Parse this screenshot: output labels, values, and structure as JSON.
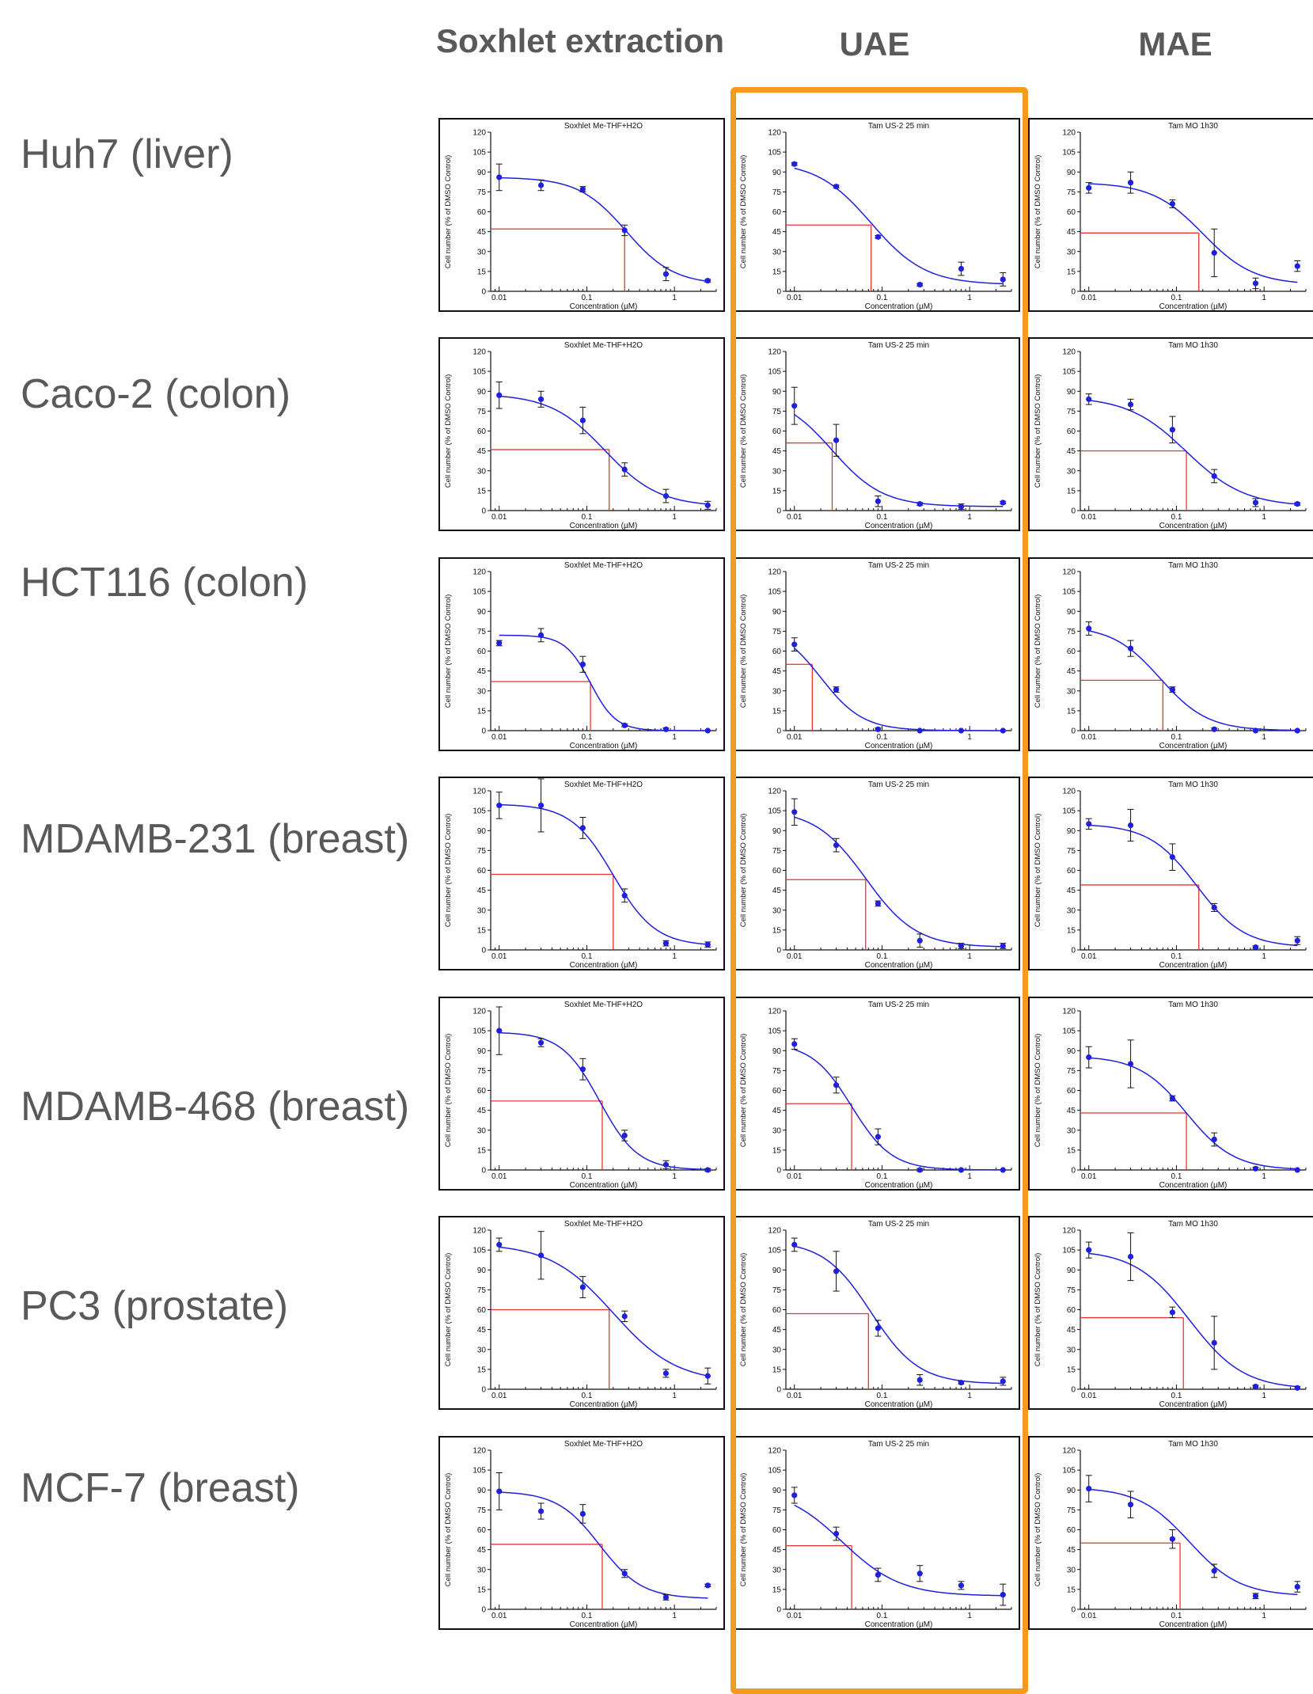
{
  "columns": [
    "Soxhlet extraction",
    "UAE",
    "MAE"
  ],
  "rows": [
    "Huh7 (liver)",
    "Caco-2 (colon)",
    "HCT116 (colon)",
    "MDAMB-231 (breast)",
    "MDAMB-468 (breast)",
    "PC3 (prostate)",
    "MCF-7 (breast)"
  ],
  "colors": {
    "highlight_frame": "#f39a20",
    "fit_curve": "#1f1fe0",
    "ic50_marker": "#e8332e",
    "header_text": "#595959"
  },
  "chart_data": [
    {
      "type": "scatter",
      "title": "Soxhlet Me-THF+H2O",
      "xlabel": "Concentration (µM)",
      "ylabel": "Cell number (% of DMSO Control)",
      "x_scale": "log",
      "xlim": [
        0.008,
        3
      ],
      "ylim": [
        0,
        120
      ],
      "xticks": [
        "0.01",
        "0.1",
        "1"
      ],
      "yticks": [
        0,
        15,
        30,
        45,
        60,
        75,
        90,
        105,
        120
      ],
      "x": [
        0.01,
        0.03,
        0.09,
        0.27,
        0.8,
        2.4
      ],
      "y": [
        86,
        80,
        77,
        46,
        13,
        8
      ],
      "err": [
        10,
        4,
        2,
        4,
        5,
        1
      ],
      "ic50_x": 0.27,
      "ic50_y": 47,
      "fit": {
        "top": 86,
        "bottom": 5,
        "ec50": 0.28,
        "hill": 1.6
      }
    },
    {
      "type": "scatter",
      "title": "Tam US-2 25 min",
      "xlabel": "Concentration (µM)",
      "ylabel": "Cell number (% of DMSO Control)",
      "x_scale": "log",
      "xlim": [
        0.008,
        3
      ],
      "ylim": [
        0,
        120
      ],
      "xticks": [
        "0.01",
        "0.1",
        "1"
      ],
      "yticks": [
        0,
        15,
        30,
        45,
        60,
        75,
        90,
        105,
        120
      ],
      "x": [
        0.01,
        0.03,
        0.09,
        0.27,
        0.8,
        2.4
      ],
      "y": [
        96,
        79,
        41,
        5,
        17,
        9
      ],
      "err": [
        1,
        1,
        1,
        1,
        5,
        5
      ],
      "ic50_x": 0.075,
      "ic50_y": 50,
      "fit": {
        "top": 98,
        "bottom": 5,
        "ec50": 0.075,
        "hill": 1.4
      }
    },
    {
      "type": "scatter",
      "title": "Tam MO 1h30",
      "xlabel": "Concentration (µM)",
      "ylabel": "Cell number (% of DMSO Control)",
      "x_scale": "log",
      "xlim": [
        0.008,
        3
      ],
      "ylim": [
        0,
        120
      ],
      "xticks": [
        "0.01",
        "0.1",
        "1"
      ],
      "yticks": [
        0,
        15,
        30,
        45,
        60,
        75,
        90,
        105,
        120
      ],
      "x": [
        0.01,
        0.03,
        0.09,
        0.27,
        0.8,
        2.4
      ],
      "y": [
        78,
        82,
        66,
        29,
        6,
        19
      ],
      "err": [
        4,
        8,
        3,
        18,
        4,
        4
      ],
      "ic50_x": 0.18,
      "ic50_y": 44,
      "fit": {
        "top": 82,
        "bottom": 5,
        "ec50": 0.2,
        "hill": 1.5
      }
    },
    {
      "type": "scatter",
      "title": "Soxhlet Me-THF+H2O",
      "xlabel": "Concentration (µM)",
      "ylabel": "Cell number (% of DMSO Control)",
      "x_scale": "log",
      "xlim": [
        0.008,
        3
      ],
      "ylim": [
        0,
        120
      ],
      "xticks": [
        "0.01",
        "0.1",
        "1"
      ],
      "yticks": [
        0,
        15,
        30,
        45,
        60,
        75,
        90,
        105,
        120
      ],
      "x": [
        0.01,
        0.03,
        0.09,
        0.27,
        0.8,
        2.4
      ],
      "y": [
        87,
        84,
        68,
        31,
        11,
        4
      ],
      "err": [
        10,
        6,
        10,
        5,
        5,
        3
      ],
      "ic50_x": 0.18,
      "ic50_y": 46,
      "fit": {
        "top": 88,
        "bottom": 3,
        "ec50": 0.16,
        "hill": 1.4
      }
    },
    {
      "type": "scatter",
      "title": "Tam US-2 25 min",
      "xlabel": "Concentration (µM)",
      "ylabel": "Cell number (% of DMSO Control)",
      "x_scale": "log",
      "xlim": [
        0.008,
        3
      ],
      "ylim": [
        0,
        120
      ],
      "xticks": [
        "0.01",
        "0.1",
        "1"
      ],
      "yticks": [
        0,
        15,
        30,
        45,
        60,
        75,
        90,
        105,
        120
      ],
      "x": [
        0.01,
        0.03,
        0.09,
        0.27,
        0.8,
        2.4
      ],
      "y": [
        79,
        53,
        7,
        5,
        3,
        6
      ],
      "err": [
        14,
        12,
        4,
        1,
        2,
        1
      ],
      "ic50_x": 0.027,
      "ic50_y": 51,
      "fit": {
        "top": 88,
        "bottom": 3,
        "ec50": 0.027,
        "hill": 1.5
      }
    },
    {
      "type": "scatter",
      "title": "Tam MO 1h30",
      "xlabel": "Concentration (µM)",
      "ylabel": "Cell number (% of DMSO Control)",
      "x_scale": "log",
      "xlim": [
        0.008,
        3
      ],
      "ylim": [
        0,
        120
      ],
      "xticks": [
        "0.01",
        "0.1",
        "1"
      ],
      "yticks": [
        0,
        15,
        30,
        45,
        60,
        75,
        90,
        105,
        120
      ],
      "x": [
        0.01,
        0.03,
        0.09,
        0.27,
        0.8,
        2.4
      ],
      "y": [
        84,
        80,
        61,
        26,
        6,
        5
      ],
      "err": [
        4,
        4,
        10,
        5,
        3,
        1
      ],
      "ic50_x": 0.13,
      "ic50_y": 45,
      "fit": {
        "top": 86,
        "bottom": 3,
        "ec50": 0.13,
        "hill": 1.3
      }
    },
    {
      "type": "scatter",
      "title": "Soxhlet Me-THF+H2O",
      "xlabel": "Concentration (µM)",
      "ylabel": "Cell number (% of DMSO Control)",
      "x_scale": "log",
      "xlim": [
        0.008,
        3
      ],
      "ylim": [
        0,
        120
      ],
      "xticks": [
        "0.01",
        "0.1",
        "1"
      ],
      "yticks": [
        0,
        15,
        30,
        45,
        60,
        75,
        90,
        105,
        120
      ],
      "x": [
        0.01,
        0.03,
        0.09,
        0.27,
        0.8,
        2.4
      ],
      "y": [
        66,
        72,
        50,
        4,
        1,
        0
      ],
      "err": [
        2,
        5,
        6,
        1,
        1,
        0
      ],
      "ic50_x": 0.11,
      "ic50_y": 37,
      "fit": {
        "top": 72,
        "bottom": 0,
        "ec50": 0.11,
        "hill": 3
      }
    },
    {
      "type": "scatter",
      "title": "Tam US-2 25 min",
      "xlabel": "Concentration (µM)",
      "ylabel": "Cell number (% of DMSO Control)",
      "x_scale": "log",
      "xlim": [
        0.008,
        3
      ],
      "ylim": [
        0,
        120
      ],
      "xticks": [
        "0.01",
        "0.1",
        "1"
      ],
      "yticks": [
        0,
        15,
        30,
        45,
        60,
        75,
        90,
        105,
        120
      ],
      "x": [
        0.01,
        0.03,
        0.09,
        0.27,
        0.8,
        2.4
      ],
      "y": [
        65,
        31,
        1,
        0,
        0,
        0
      ],
      "err": [
        5,
        2,
        1,
        0,
        0,
        0
      ],
      "ic50_x": 0.016,
      "ic50_y": 50,
      "fit": {
        "top": 80,
        "bottom": 0,
        "ec50": 0.02,
        "hill": 1.8
      }
    },
    {
      "type": "scatter",
      "title": "Tam MO 1h30",
      "xlabel": "Concentration (µM)",
      "ylabel": "Cell number (% of DMSO Control)",
      "x_scale": "log",
      "xlim": [
        0.008,
        3
      ],
      "ylim": [
        0,
        120
      ],
      "xticks": [
        "0.01",
        "0.1",
        "1"
      ],
      "yticks": [
        0,
        15,
        30,
        45,
        60,
        75,
        90,
        105,
        120
      ],
      "x": [
        0.01,
        0.03,
        0.09,
        0.27,
        0.8,
        2.4
      ],
      "y": [
        77,
        62,
        31,
        1,
        0,
        0
      ],
      "err": [
        5,
        6,
        2,
        1,
        0,
        0
      ],
      "ic50_x": 0.07,
      "ic50_y": 38,
      "fit": {
        "top": 79,
        "bottom": 0,
        "ec50": 0.065,
        "hill": 1.6
      }
    },
    {
      "type": "scatter",
      "title": "Soxhlet Me-THF+H2O",
      "xlabel": "Concentration (µM)",
      "ylabel": "Cell number (% of DMSO Control)",
      "x_scale": "log",
      "xlim": [
        0.008,
        3
      ],
      "ylim": [
        0,
        120
      ],
      "xticks": [
        "0.01",
        "0.1",
        "1"
      ],
      "yticks": [
        0,
        15,
        30,
        45,
        60,
        75,
        90,
        105,
        120
      ],
      "x": [
        0.01,
        0.03,
        0.09,
        0.27,
        0.8,
        2.4
      ],
      "y": [
        109,
        109,
        92,
        41,
        5,
        4
      ],
      "err": [
        10,
        20,
        8,
        5,
        2,
        2
      ],
      "ic50_x": 0.2,
      "ic50_y": 57,
      "fit": {
        "top": 110,
        "bottom": 3,
        "ec50": 0.2,
        "hill": 1.8
      }
    },
    {
      "type": "scatter",
      "title": "Tam US-2 25 min",
      "xlabel": "Concentration (µM)",
      "ylabel": "Cell number (% of DMSO Control)",
      "x_scale": "log",
      "xlim": [
        0.008,
        3
      ],
      "ylim": [
        0,
        120
      ],
      "xticks": [
        "0.01",
        "0.1",
        "1"
      ],
      "yticks": [
        0,
        15,
        30,
        45,
        60,
        75,
        90,
        105,
        120
      ],
      "x": [
        0.01,
        0.03,
        0.09,
        0.27,
        0.8,
        2.4
      ],
      "y": [
        104,
        79,
        35,
        7,
        3,
        3
      ],
      "err": [
        10,
        5,
        2,
        5,
        2,
        2
      ],
      "ic50_x": 0.065,
      "ic50_y": 53,
      "fit": {
        "top": 106,
        "bottom": 2,
        "ec50": 0.065,
        "hill": 1.5
      }
    },
    {
      "type": "scatter",
      "title": "Tam MO 1h30",
      "xlabel": "Concentration (µM)",
      "ylabel": "Cell number (% of DMSO Control)",
      "x_scale": "log",
      "xlim": [
        0.008,
        3
      ],
      "ylim": [
        0,
        120
      ],
      "xticks": [
        "0.01",
        "0.1",
        "1"
      ],
      "yticks": [
        0,
        15,
        30,
        45,
        60,
        75,
        90,
        105,
        120
      ],
      "x": [
        0.01,
        0.03,
        0.09,
        0.27,
        0.8,
        2.4
      ],
      "y": [
        95,
        94,
        70,
        32,
        2,
        7
      ],
      "err": [
        4,
        12,
        10,
        3,
        1,
        3
      ],
      "ic50_x": 0.18,
      "ic50_y": 49,
      "fit": {
        "top": 95,
        "bottom": 2,
        "ec50": 0.17,
        "hill": 1.6
      }
    },
    {
      "type": "scatter",
      "title": "Soxhlet Me-THF+H2O",
      "xlabel": "Concentration (µM)",
      "ylabel": "Cell number (% of DMSO Control)",
      "x_scale": "log",
      "xlim": [
        0.008,
        3
      ],
      "ylim": [
        0,
        120
      ],
      "xticks": [
        "0.01",
        "0.1",
        "1"
      ],
      "yticks": [
        0,
        15,
        30,
        45,
        60,
        75,
        90,
        105,
        120
      ],
      "x": [
        0.01,
        0.03,
        0.09,
        0.27,
        0.8,
        2.4
      ],
      "y": [
        105,
        96,
        76,
        26,
        4,
        0
      ],
      "err": [
        18,
        3,
        8,
        4,
        3,
        1
      ],
      "ic50_x": 0.15,
      "ic50_y": 52,
      "fit": {
        "top": 104,
        "bottom": 0,
        "ec50": 0.14,
        "hill": 2
      }
    },
    {
      "type": "scatter",
      "title": "Tam US-2 25 min",
      "xlabel": "Concentration (µM)",
      "ylabel": "Cell number (% of DMSO Control)",
      "x_scale": "log",
      "xlim": [
        0.008,
        3
      ],
      "ylim": [
        0,
        120
      ],
      "xticks": [
        "0.01",
        "0.1",
        "1"
      ],
      "yticks": [
        0,
        15,
        30,
        45,
        60,
        75,
        90,
        105,
        120
      ],
      "x": [
        0.01,
        0.03,
        0.09,
        0.27,
        0.8,
        2.4
      ],
      "y": [
        95,
        64,
        25,
        0,
        0,
        0
      ],
      "err": [
        4,
        6,
        6,
        1,
        0,
        0
      ],
      "ic50_x": 0.045,
      "ic50_y": 50,
      "fit": {
        "top": 96,
        "bottom": 0,
        "ec50": 0.045,
        "hill": 1.9
      }
    },
    {
      "type": "scatter",
      "title": "Tam MO 1h30",
      "xlabel": "Concentration (µM)",
      "ylabel": "Cell number (% of DMSO Control)",
      "x_scale": "log",
      "xlim": [
        0.008,
        3
      ],
      "ylim": [
        0,
        120
      ],
      "xticks": [
        "0.01",
        "0.1",
        "1"
      ],
      "yticks": [
        0,
        15,
        30,
        45,
        60,
        75,
        90,
        105,
        120
      ],
      "x": [
        0.01,
        0.03,
        0.09,
        0.27,
        0.8,
        2.4
      ],
      "y": [
        85,
        80,
        54,
        23,
        1,
        0
      ],
      "err": [
        8,
        18,
        2,
        5,
        1,
        0
      ],
      "ic50_x": 0.13,
      "ic50_y": 43,
      "fit": {
        "top": 86,
        "bottom": 0,
        "ec50": 0.13,
        "hill": 1.6
      }
    },
    {
      "type": "scatter",
      "title": "Soxhlet Me-THF+H2O",
      "xlabel": "Concentration (µM)",
      "ylabel": "Cell number (% of DMSO Control)",
      "x_scale": "log",
      "xlim": [
        0.008,
        3
      ],
      "ylim": [
        0,
        120
      ],
      "xticks": [
        "0.01",
        "0.1",
        "1"
      ],
      "yticks": [
        0,
        15,
        30,
        45,
        60,
        75,
        90,
        105,
        120
      ],
      "x": [
        0.01,
        0.03,
        0.09,
        0.27,
        0.8,
        2.4
      ],
      "y": [
        109,
        101,
        77,
        55,
        12,
        10
      ],
      "err": [
        5,
        18,
        8,
        4,
        3,
        6
      ],
      "ic50_x": 0.18,
      "ic50_y": 60,
      "fit": {
        "top": 110,
        "bottom": 5,
        "ec50": 0.2,
        "hill": 1.2
      }
    },
    {
      "type": "scatter",
      "title": "Tam US-2 25 min",
      "xlabel": "Concentration (µM)",
      "ylabel": "Cell number (% of DMSO Control)",
      "x_scale": "log",
      "xlim": [
        0.008,
        3
      ],
      "ylim": [
        0,
        120
      ],
      "xticks": [
        "0.01",
        "0.1",
        "1"
      ],
      "yticks": [
        0,
        15,
        30,
        45,
        60,
        75,
        90,
        105,
        120
      ],
      "x": [
        0.01,
        0.03,
        0.09,
        0.27,
        0.8,
        2.4
      ],
      "y": [
        109,
        89,
        46,
        7,
        5,
        6
      ],
      "err": [
        5,
        15,
        6,
        4,
        1,
        3
      ],
      "ic50_x": 0.07,
      "ic50_y": 57,
      "fit": {
        "top": 112,
        "bottom": 4,
        "ec50": 0.075,
        "hill": 1.6
      }
    },
    {
      "type": "scatter",
      "title": "Tam MO 1h30",
      "xlabel": "Concentration (µM)",
      "ylabel": "Cell number (% of DMSO Control)",
      "x_scale": "log",
      "xlim": [
        0.008,
        3
      ],
      "ylim": [
        0,
        120
      ],
      "xticks": [
        "0.01",
        "0.1",
        "1"
      ],
      "yticks": [
        0,
        15,
        30,
        45,
        60,
        75,
        90,
        105,
        120
      ],
      "x": [
        0.01,
        0.03,
        0.09,
        0.27,
        0.8,
        2.4
      ],
      "y": [
        105,
        100,
        58,
        35,
        2,
        1
      ],
      "err": [
        6,
        18,
        4,
        20,
        1,
        1
      ],
      "ic50_x": 0.12,
      "ic50_y": 54,
      "fit": {
        "top": 105,
        "bottom": 0,
        "ec50": 0.14,
        "hill": 1.4
      }
    },
    {
      "type": "scatter",
      "title": "Soxhlet Me-THF+H2O",
      "xlabel": "Concentration (µM)",
      "ylabel": "Cell number (% of DMSO Control)",
      "x_scale": "log",
      "xlim": [
        0.008,
        3
      ],
      "ylim": [
        0,
        120
      ],
      "xticks": [
        "0.01",
        "0.1",
        "1"
      ],
      "yticks": [
        0,
        15,
        30,
        45,
        60,
        75,
        90,
        105,
        120
      ],
      "x": [
        0.01,
        0.03,
        0.09,
        0.27,
        0.8,
        2.4
      ],
      "y": [
        89,
        74,
        72,
        27,
        9,
        18
      ],
      "err": [
        14,
        6,
        7,
        3,
        2,
        1
      ],
      "ic50_x": 0.15,
      "ic50_y": 49,
      "fit": {
        "top": 89,
        "bottom": 8,
        "ec50": 0.14,
        "hill": 1.8
      }
    },
    {
      "type": "scatter",
      "title": "Tam US-2 25 min",
      "xlabel": "Concentration (µM)",
      "ylabel": "Cell number (% of DMSO Control)",
      "x_scale": "log",
      "xlim": [
        0.008,
        3
      ],
      "ylim": [
        0,
        120
      ],
      "xticks": [
        "0.01",
        "0.1",
        "1"
      ],
      "yticks": [
        0,
        15,
        30,
        45,
        60,
        75,
        90,
        105,
        120
      ],
      "x": [
        0.01,
        0.03,
        0.09,
        0.27,
        0.8,
        2.4
      ],
      "y": [
        86,
        57,
        26,
        27,
        18,
        11
      ],
      "err": [
        6,
        5,
        5,
        6,
        3,
        8
      ],
      "ic50_x": 0.045,
      "ic50_y": 48,
      "fit": {
        "top": 92,
        "bottom": 10,
        "ec50": 0.035,
        "hill": 1.3
      }
    },
    {
      "type": "scatter",
      "title": "Tam MO 1h30",
      "xlabel": "Concentration (µM)",
      "ylabel": "Cell number (% of DMSO Control)",
      "x_scale": "log",
      "xlim": [
        0.008,
        3
      ],
      "ylim": [
        0,
        120
      ],
      "xticks": [
        "0.01",
        "0.1",
        "1"
      ],
      "yticks": [
        0,
        15,
        30,
        45,
        60,
        75,
        90,
        105,
        120
      ],
      "x": [
        0.01,
        0.03,
        0.09,
        0.27,
        0.8,
        2.4
      ],
      "y": [
        91,
        79,
        53,
        29,
        10,
        17
      ],
      "err": [
        10,
        10,
        7,
        5,
        2,
        4
      ],
      "ic50_x": 0.11,
      "ic50_y": 50,
      "fit": {
        "top": 92,
        "bottom": 10,
        "ec50": 0.14,
        "hill": 1.5
      }
    }
  ]
}
